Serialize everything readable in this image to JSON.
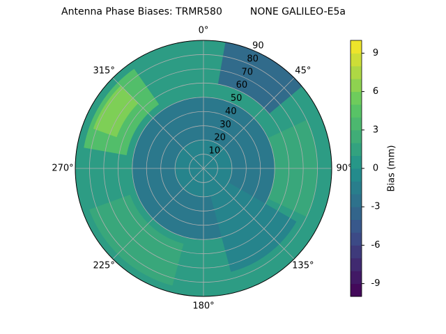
{
  "chart_data": {
    "type": "polar_contour",
    "title": "Antenna Phase Biases: TRMR580         NONE GALILEO-E5a",
    "rlim": [
      0,
      90
    ],
    "rticks": [
      10,
      20,
      30,
      40,
      50,
      60,
      70,
      80,
      90
    ],
    "thetaticks": [
      {
        "value": 0,
        "label": "0°"
      },
      {
        "value": 45,
        "label": "45°"
      },
      {
        "value": 90,
        "label": "90°"
      },
      {
        "value": 135,
        "label": "135°"
      },
      {
        "value": 180,
        "label": "180°"
      },
      {
        "value": 225,
        "label": "225°"
      },
      {
        "value": 270,
        "label": "270°"
      },
      {
        "value": 315,
        "label": "315°"
      }
    ],
    "background_value": 1,
    "regions": [
      {
        "azimuth": [
          0,
          360
        ],
        "zenith": [
          0,
          50
        ],
        "value": -2
      },
      {
        "azimuth": [
          0,
          360
        ],
        "zenith": [
          0,
          20
        ],
        "value": -1
      },
      {
        "azimuth": [
          10,
          50
        ],
        "zenith": [
          60,
          90
        ],
        "value": -3
      },
      {
        "azimuth": [
          120,
          165
        ],
        "zenith": [
          20,
          75
        ],
        "value": -1
      },
      {
        "azimuth": [
          65,
          115
        ],
        "zenith": [
          50,
          80
        ],
        "value": 2
      },
      {
        "azimuth": [
          195,
          250
        ],
        "zenith": [
          55,
          85
        ],
        "value": 2
      },
      {
        "azimuth": [
          280,
          325
        ],
        "zenith": [
          55,
          85
        ],
        "value": 4
      },
      {
        "azimuth": [
          290,
          315
        ],
        "zenith": [
          65,
          82
        ],
        "value": 6
      }
    ],
    "colorbar": {
      "label": "Bias (mm)",
      "clim": [
        -10,
        10
      ],
      "ticks": [
        -9,
        -6,
        -3,
        0,
        3,
        6,
        9
      ],
      "colormap": "viridis"
    }
  }
}
